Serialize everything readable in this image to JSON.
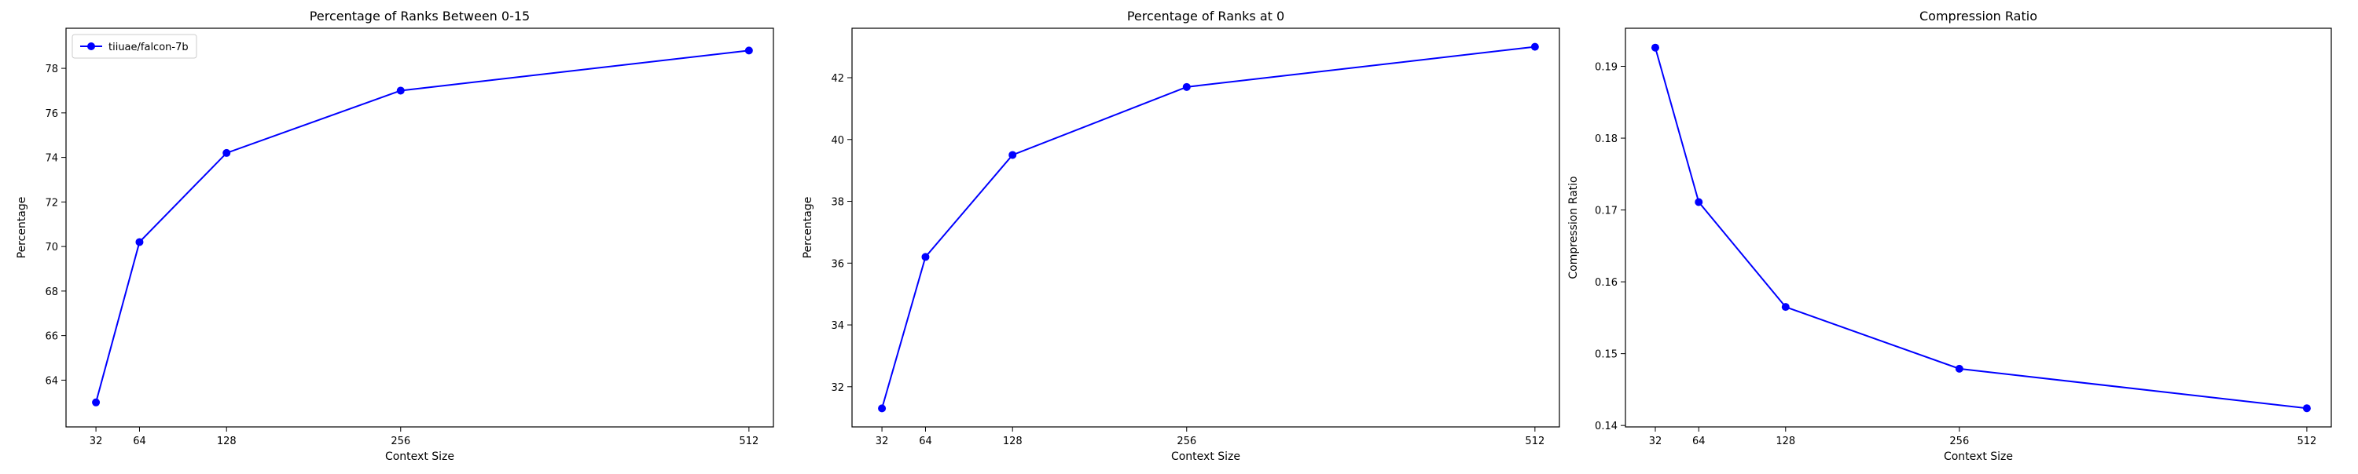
{
  "chart_data": [
    {
      "type": "line",
      "title": "Percentage of Ranks Between 0-15",
      "xlabel": "Context Size",
      "ylabel": "Percentage",
      "x": [
        32,
        64,
        128,
        256,
        512
      ],
      "xticks": [
        32,
        64,
        128,
        256,
        512
      ],
      "xlim": [
        10,
        530
      ],
      "yticks": [
        64,
        66,
        68,
        70,
        72,
        74,
        76,
        78
      ],
      "ylim": [
        61.9,
        79.8
      ],
      "grid": false,
      "legend": {
        "placement": "top-left"
      },
      "series": [
        {
          "name": "tiiuae/falcon-7b",
          "color": "#0000ff",
          "values": [
            63.0,
            70.2,
            74.2,
            77.0,
            78.8
          ]
        }
      ]
    },
    {
      "type": "line",
      "title": "Percentage of Ranks at 0",
      "xlabel": "Context Size",
      "ylabel": "Percentage",
      "x": [
        32,
        64,
        128,
        256,
        512
      ],
      "xticks": [
        32,
        64,
        128,
        256,
        512
      ],
      "xlim": [
        10,
        530
      ],
      "yticks": [
        32,
        34,
        36,
        38,
        40,
        42
      ],
      "ylim": [
        30.7,
        43.6
      ],
      "grid": false,
      "series": [
        {
          "color": "#0000ff",
          "values": [
            31.3,
            36.2,
            39.5,
            41.7,
            43.0
          ]
        }
      ]
    },
    {
      "type": "line",
      "title": "Compression Ratio",
      "xlabel": "Context Size",
      "ylabel": "Compression Ratio",
      "x": [
        32,
        64,
        128,
        256,
        512
      ],
      "xticks": [
        32,
        64,
        128,
        256,
        512
      ],
      "xlim": [
        10,
        530
      ],
      "yticks": [
        0.14,
        0.15,
        0.16,
        0.17,
        0.18,
        0.19
      ],
      "ylim": [
        0.1398,
        0.1953
      ],
      "yformat": 2,
      "grid": false,
      "series": [
        {
          "color": "#0000ff",
          "values": [
            0.1926,
            0.1711,
            0.1565,
            0.1479,
            0.1424
          ]
        }
      ]
    }
  ]
}
